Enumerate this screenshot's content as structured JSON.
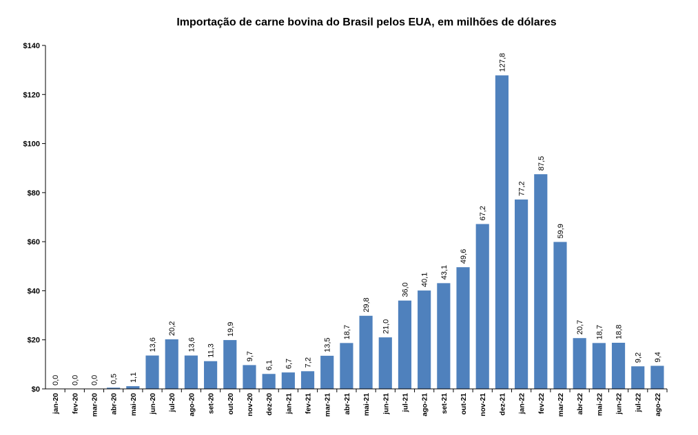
{
  "chart_data": {
    "type": "bar",
    "title": "Importação de carne bovina do Brasil pelos EUA, em milhões de dólares",
    "xlabel": "",
    "ylabel": "",
    "ylim": [
      0,
      140
    ],
    "yticks": [
      0,
      20,
      40,
      60,
      80,
      100,
      120,
      140
    ],
    "ytick_labels": [
      "$0",
      "$20",
      "$40",
      "$60",
      "$80",
      "$100",
      "$120",
      "$140"
    ],
    "grid": false,
    "legend": "none",
    "bar_color": "#4f81bd",
    "categories": [
      "jan-20",
      "fev-20",
      "mar-20",
      "abr-20",
      "mai-20",
      "jun-20",
      "jul-20",
      "ago-20",
      "set-20",
      "out-20",
      "nov-20",
      "dez-20",
      "jan-21",
      "fev-21",
      "mar-21",
      "abr-21",
      "mai-21",
      "jun-21",
      "jul-21",
      "ago-21",
      "set-21",
      "out-21",
      "nov-21",
      "dez-21",
      "jan-22",
      "fev-22",
      "mar-22",
      "abr-22",
      "mai-22",
      "jun-22",
      "jul-22",
      "ago-22"
    ],
    "values": [
      0.0,
      0.0,
      0.0,
      0.5,
      1.1,
      13.6,
      20.2,
      13.6,
      11.3,
      19.9,
      9.7,
      6.1,
      6.7,
      7.2,
      13.5,
      18.7,
      29.8,
      21.0,
      36.0,
      40.1,
      43.1,
      49.6,
      67.2,
      127.8,
      77.2,
      87.5,
      59.9,
      20.7,
      18.7,
      18.8,
      9.2,
      9.4
    ],
    "value_labels": [
      "0,0",
      "0,0",
      "0,0",
      "0,5",
      "1,1",
      "13,6",
      "20,2",
      "13,6",
      "11,3",
      "19,9",
      "9,7",
      "6,1",
      "6,7",
      "7,2",
      "13,5",
      "18,7",
      "29,8",
      "21,0",
      "36,0",
      "40,1",
      "43,1",
      "49,6",
      "67,2",
      "127,8",
      "77,2",
      "87,5",
      "59,9",
      "20,7",
      "18,7",
      "18,8",
      "9,2",
      "9,4"
    ]
  }
}
